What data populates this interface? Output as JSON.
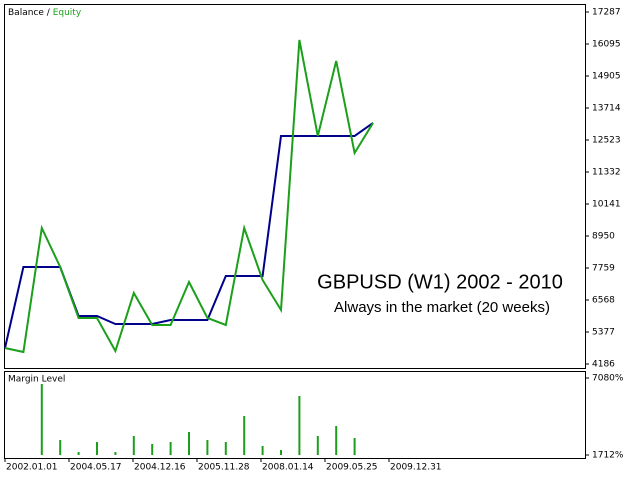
{
  "chart_data": [
    {
      "type": "line",
      "legend_separator": "/",
      "annotations": [
        "GBPUSD (W1) 2002 - 2010",
        "Always in the market (20 weeks)"
      ],
      "categories": [
        null,
        null,
        null,
        null,
        null,
        null,
        null,
        null,
        null,
        null,
        null,
        null,
        null,
        null,
        null,
        null,
        null,
        null,
        null,
        null,
        null
      ],
      "x_labels": [
        "2002.01.01",
        "2004.05.17",
        "2004.12.16",
        "2005.11.28",
        "2008.01.14",
        "2009.05.25",
        "2009.12.31"
      ],
      "series": [
        {
          "name": "Balance",
          "color": "#00008b",
          "values": [
            4782,
            7796,
            7796,
            7796,
            5973,
            5973,
            5675,
            5675,
            5675,
            5824,
            5824,
            5824,
            7461,
            7461,
            7461,
            12672,
            12672,
            12672,
            12672,
            12672,
            13156
          ]
        },
        {
          "name": "Equity",
          "color": "#1aa01a",
          "values": [
            4782,
            4633,
            9248,
            7796,
            5898,
            5898,
            4670,
            6829,
            5638,
            5638,
            7238,
            5898,
            5638,
            9248,
            7313,
            6196,
            16245,
            12672,
            15464,
            12040,
            13156
          ]
        }
      ],
      "ylim": [
        4037,
        17547
      ],
      "yticks": [
        4186,
        5377,
        6568,
        7759,
        8950,
        10141,
        11332,
        12523,
        13714,
        14905,
        16095,
        17287
      ]
    },
    {
      "type": "bar",
      "title": "Margin Level",
      "color": "#1aa01a",
      "values": [
        null,
        null,
        6662,
        2758,
        1921,
        2618,
        1921,
        3036,
        2479,
        2618,
        3315,
        2758,
        2618,
        4431,
        2339,
        2061,
        5825,
        3036,
        3734,
        2897,
        null
      ],
      "ylim": [
        1712,
        7080
      ],
      "yticks": [
        {
          "value": 1712,
          "label": "1712%"
        },
        {
          "value": 7080,
          "label": "7080%"
        }
      ]
    }
  ]
}
